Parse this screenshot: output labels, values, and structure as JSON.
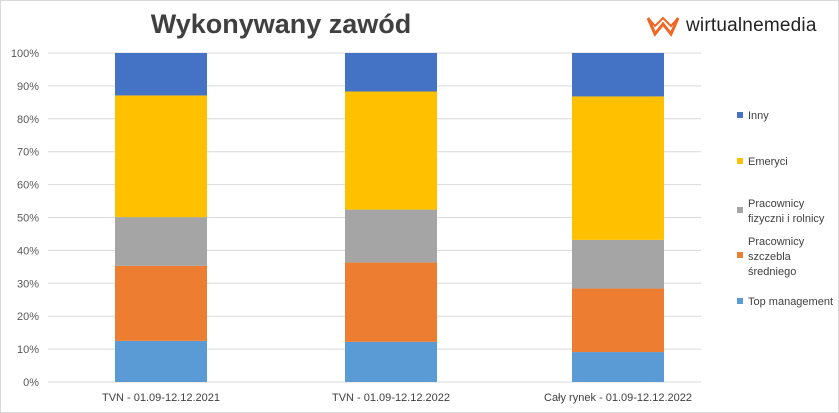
{
  "chart_data": {
    "type": "bar",
    "stacked": "percent",
    "title": "Wykonywany zawód",
    "xlabel": "",
    "ylabel": "",
    "ylim": [
      0,
      100
    ],
    "yticks": [
      "0%",
      "10%",
      "20%",
      "30%",
      "40%",
      "50%",
      "60%",
      "70%",
      "80%",
      "90%",
      "100%"
    ],
    "grid": true,
    "legend_position": "right",
    "categories": [
      "TVN - 01.09-12.12.2021",
      "TVN - 01.09-12.12.2022",
      "Cały rynek - 01.09-12.12.2022"
    ],
    "series": [
      {
        "name": "Top management",
        "color": "#5B9BD5",
        "values": [
          12.5,
          12.2,
          9.1
        ]
      },
      {
        "name": "Pracownicy szczebla średniego",
        "legend_lines": [
          "Pracownicy",
          "szczebla",
          "średniego"
        ],
        "color": "#ED7D31",
        "values": [
          22.8,
          24.1,
          19.3
        ]
      },
      {
        "name": "Pracownicy fizyczni i rolnicy",
        "legend_lines": [
          "Pracownicy",
          "fizyczni i rolnicy"
        ],
        "color": "#A5A5A5",
        "values": [
          14.8,
          16.1,
          14.8
        ]
      },
      {
        "name": "Emeryci",
        "color": "#FFC000",
        "values": [
          37.0,
          35.9,
          43.6
        ]
      },
      {
        "name": "Inny",
        "color": "#4472C4",
        "values": [
          12.9,
          11.7,
          13.2
        ]
      }
    ]
  },
  "logo": {
    "text": "wirtualnemedia",
    "color": "#F26522"
  }
}
